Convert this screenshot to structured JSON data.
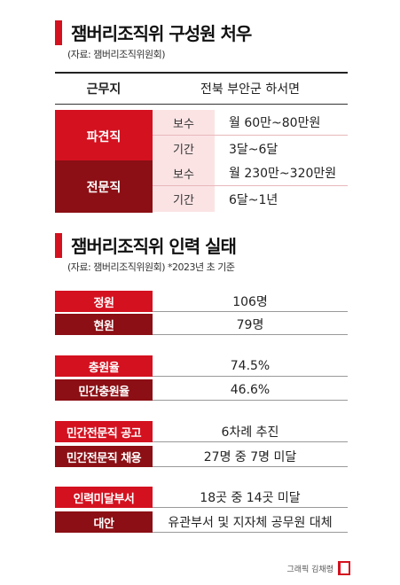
{
  "section1": {
    "title": "잼버리조직위 구성원 처우",
    "source": "(자료: 잼버리조직위원회)",
    "workplace": {
      "label": "근무지",
      "value": "전북 부안군 하서면"
    },
    "groups": [
      {
        "label": "파견직",
        "rows": [
          {
            "sub": "보수",
            "value": "월 60만~80만원"
          },
          {
            "sub": "기간",
            "value": "3달~6달"
          }
        ]
      },
      {
        "label": "전문직",
        "rows": [
          {
            "sub": "보수",
            "value": "월 230만~320만원"
          },
          {
            "sub": "기간",
            "value": "6달~1년"
          }
        ]
      }
    ]
  },
  "section2": {
    "title": "잼버리조직위 인력 실태",
    "source": "(자료: 잼버리조직위원회)  *2023년 초 기준",
    "stats": [
      {
        "label": "정원",
        "value": "106명"
      },
      {
        "label": "현원",
        "value": "79명"
      },
      {
        "label": "충원율",
        "value": "74.5%"
      },
      {
        "label": "민간충원율",
        "value": "46.6%"
      },
      {
        "label": "민간전문직 공고",
        "value": "6차례 추진"
      },
      {
        "label": "민간전문직 채용",
        "value": "27명 중 7명 미달"
      },
      {
        "label": "인력미달부서",
        "value": "18곳 중 14곳 미달"
      },
      {
        "label": "대안",
        "value": "유관부서 및 지자체 공무원 대체"
      }
    ]
  },
  "credit": "그래픽 김채령",
  "colors": {
    "accent_red": "#d4111f",
    "dark_red": "#8b0f14",
    "pink": "#fbe3e4"
  }
}
